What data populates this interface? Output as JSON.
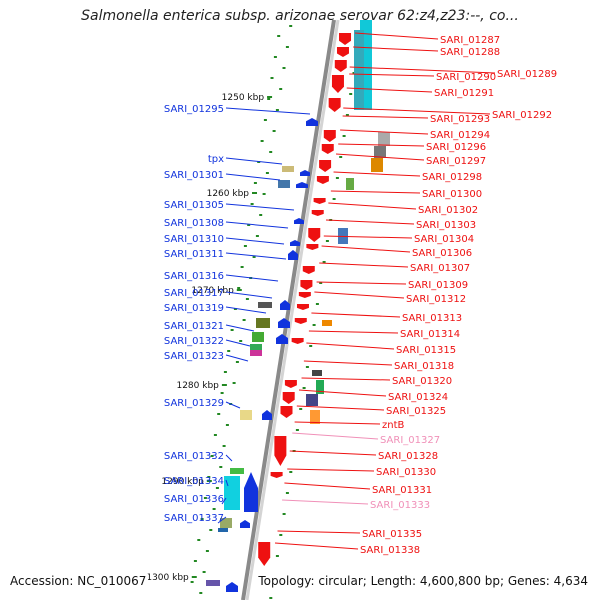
{
  "title": "Salmonella enterica subsp. arizonae serovar 62:z4,z23:--, co...",
  "footer": {
    "accession": "Accession: NC_010067",
    "topology": "Topology: circular; Length: 4,600,800 bp; Genes: 4,634"
  },
  "colors": {
    "right_strand": "#ee1111",
    "left_strand": "#1133dd",
    "faded_label": "#f090b8",
    "axis": "#8a8a8a",
    "tick": "#228822"
  },
  "kbp_ticks": [
    "1250 kbp",
    "1260 kbp",
    "1270 kbp",
    "1280 kbp",
    "1290 kbp",
    "1300 kbp"
  ],
  "left_labels": [
    "SARI_01295",
    "tpx",
    "SARI_01301",
    "SARI_01305",
    "SARI_01308",
    "SARI_01310",
    "SARI_01311",
    "SARI_01316",
    "SARI_01317",
    "SARI_01319",
    "SARI_01321",
    "SARI_01322",
    "SARI_01323",
    "SARI_01329",
    "SARI_01332",
    "SARI_01334",
    "SARI_01336",
    "SARI_01337"
  ],
  "right_labels": [
    "SARI_01287",
    "SARI_01288",
    "SARI_01290",
    "SARI_01289",
    "SARI_01291",
    "SARI_01293",
    "SARI_01292",
    "SARI_01294",
    "SARI_01296",
    "SARI_01297",
    "SARI_01298",
    "SARI_01300",
    "SARI_01302",
    "SARI_01303",
    "SARI_01304",
    "SARI_01306",
    "SARI_01307",
    "SARI_01309",
    "SARI_01312",
    "SARI_01313",
    "SARI_01314",
    "SARI_01315",
    "SARI_01318",
    "SARI_01320",
    "SARI_01324",
    "SARI_01325",
    "zntB",
    "SARI_01327",
    "SARI_01328",
    "SARI_01330",
    "SARI_01331",
    "SARI_01333",
    "SARI_01335",
    "SARI_01338"
  ],
  "faded_right_labels": [
    "SARI_01327",
    "SARI_01333"
  ]
}
